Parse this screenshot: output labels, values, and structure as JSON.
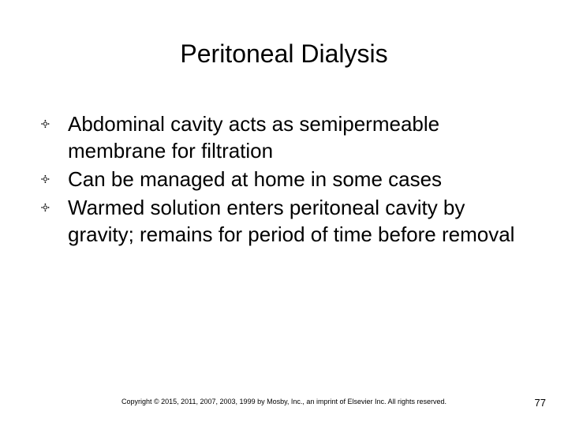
{
  "slide": {
    "title": "Peritoneal Dialysis",
    "title_fontsize": 32,
    "body_fontsize": 26,
    "bullet_glyph": "༓",
    "bullets": [
      "Abdominal cavity acts as semipermeable membrane for filtration",
      "Can be managed at home in some cases",
      "Warmed solution enters peritoneal cavity by gravity; remains for period of time before removal"
    ],
    "footer": "Copyright © 2015, 2011, 2007, 2003, 1999 by Mosby, Inc., an imprint of Elsevier Inc. All rights reserved.",
    "page_number": "77",
    "background_color": "#ffffff",
    "text_color": "#000000"
  }
}
